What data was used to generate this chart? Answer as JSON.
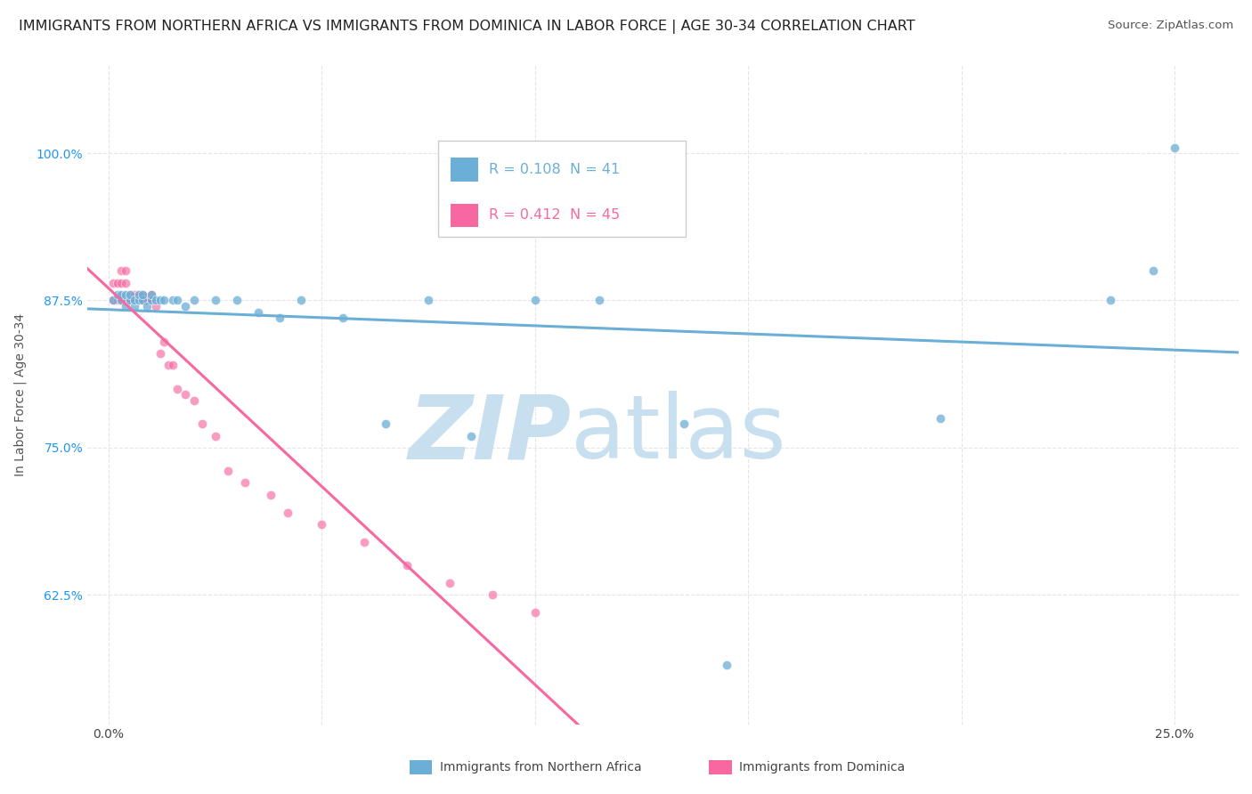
{
  "title": "IMMIGRANTS FROM NORTHERN AFRICA VS IMMIGRANTS FROM DOMINICA IN LABOR FORCE | AGE 30-34 CORRELATION CHART",
  "source": "Source: ZipAtlas.com",
  "ylabel": "In Labor Force | Age 30-34",
  "blue_color": "#6baed6",
  "pink_color": "#f768a1",
  "blue_R": 0.108,
  "blue_N": 41,
  "pink_R": 0.412,
  "pink_N": 45,
  "x_ticks": [
    0.0,
    0.05,
    0.1,
    0.15,
    0.2,
    0.25
  ],
  "x_tick_labels": [
    "0.0%",
    "",
    "",
    "",
    "",
    "25.0%"
  ],
  "y_ticks": [
    0.625,
    0.75,
    0.875,
    1.0
  ],
  "y_tick_labels": [
    "62.5%",
    "75.0%",
    "87.5%",
    "100.0%"
  ],
  "xlim": [
    -0.005,
    0.265
  ],
  "ylim": [
    0.515,
    1.075
  ],
  "blue_scatter_x": [
    0.001,
    0.002,
    0.003,
    0.003,
    0.004,
    0.004,
    0.005,
    0.005,
    0.006,
    0.006,
    0.007,
    0.007,
    0.008,
    0.008,
    0.009,
    0.01,
    0.01,
    0.011,
    0.012,
    0.013,
    0.015,
    0.016,
    0.018,
    0.02,
    0.025,
    0.03,
    0.035,
    0.04,
    0.045,
    0.055,
    0.065,
    0.075,
    0.085,
    0.1,
    0.115,
    0.135,
    0.145,
    0.195,
    0.235,
    0.245,
    0.25
  ],
  "blue_scatter_y": [
    0.875,
    0.88,
    0.875,
    0.88,
    0.87,
    0.88,
    0.875,
    0.88,
    0.87,
    0.875,
    0.875,
    0.88,
    0.875,
    0.88,
    0.87,
    0.875,
    0.88,
    0.875,
    0.875,
    0.875,
    0.875,
    0.875,
    0.87,
    0.875,
    0.875,
    0.875,
    0.865,
    0.86,
    0.875,
    0.86,
    0.77,
    0.875,
    0.76,
    0.875,
    0.875,
    0.77,
    0.565,
    0.775,
    0.875,
    0.9,
    1.005
  ],
  "pink_scatter_x": [
    0.001,
    0.001,
    0.002,
    0.002,
    0.003,
    0.003,
    0.003,
    0.004,
    0.004,
    0.004,
    0.005,
    0.005,
    0.005,
    0.006,
    0.006,
    0.006,
    0.007,
    0.007,
    0.007,
    0.008,
    0.008,
    0.009,
    0.009,
    0.01,
    0.01,
    0.011,
    0.012,
    0.013,
    0.014,
    0.015,
    0.016,
    0.018,
    0.02,
    0.022,
    0.025,
    0.028,
    0.032,
    0.038,
    0.042,
    0.05,
    0.06,
    0.07,
    0.08,
    0.09,
    0.1
  ],
  "pink_scatter_y": [
    0.875,
    0.89,
    0.875,
    0.89,
    0.875,
    0.89,
    0.9,
    0.875,
    0.89,
    0.9,
    0.875,
    0.88,
    0.875,
    0.88,
    0.875,
    0.875,
    0.875,
    0.88,
    0.875,
    0.88,
    0.875,
    0.875,
    0.875,
    0.88,
    0.875,
    0.87,
    0.83,
    0.84,
    0.82,
    0.82,
    0.8,
    0.795,
    0.79,
    0.77,
    0.76,
    0.73,
    0.72,
    0.71,
    0.695,
    0.685,
    0.67,
    0.65,
    0.635,
    0.625,
    0.61
  ],
  "watermark_part1": "ZIP",
  "watermark_part2": "atlas",
  "watermark_color1": "#c8dff0",
  "watermark_color2": "#c8dff0",
  "bg_color": "#ffffff",
  "grid_color": "#e5e5e5",
  "title_fontsize": 11.5,
  "axis_label_fontsize": 10,
  "tick_fontsize": 10
}
